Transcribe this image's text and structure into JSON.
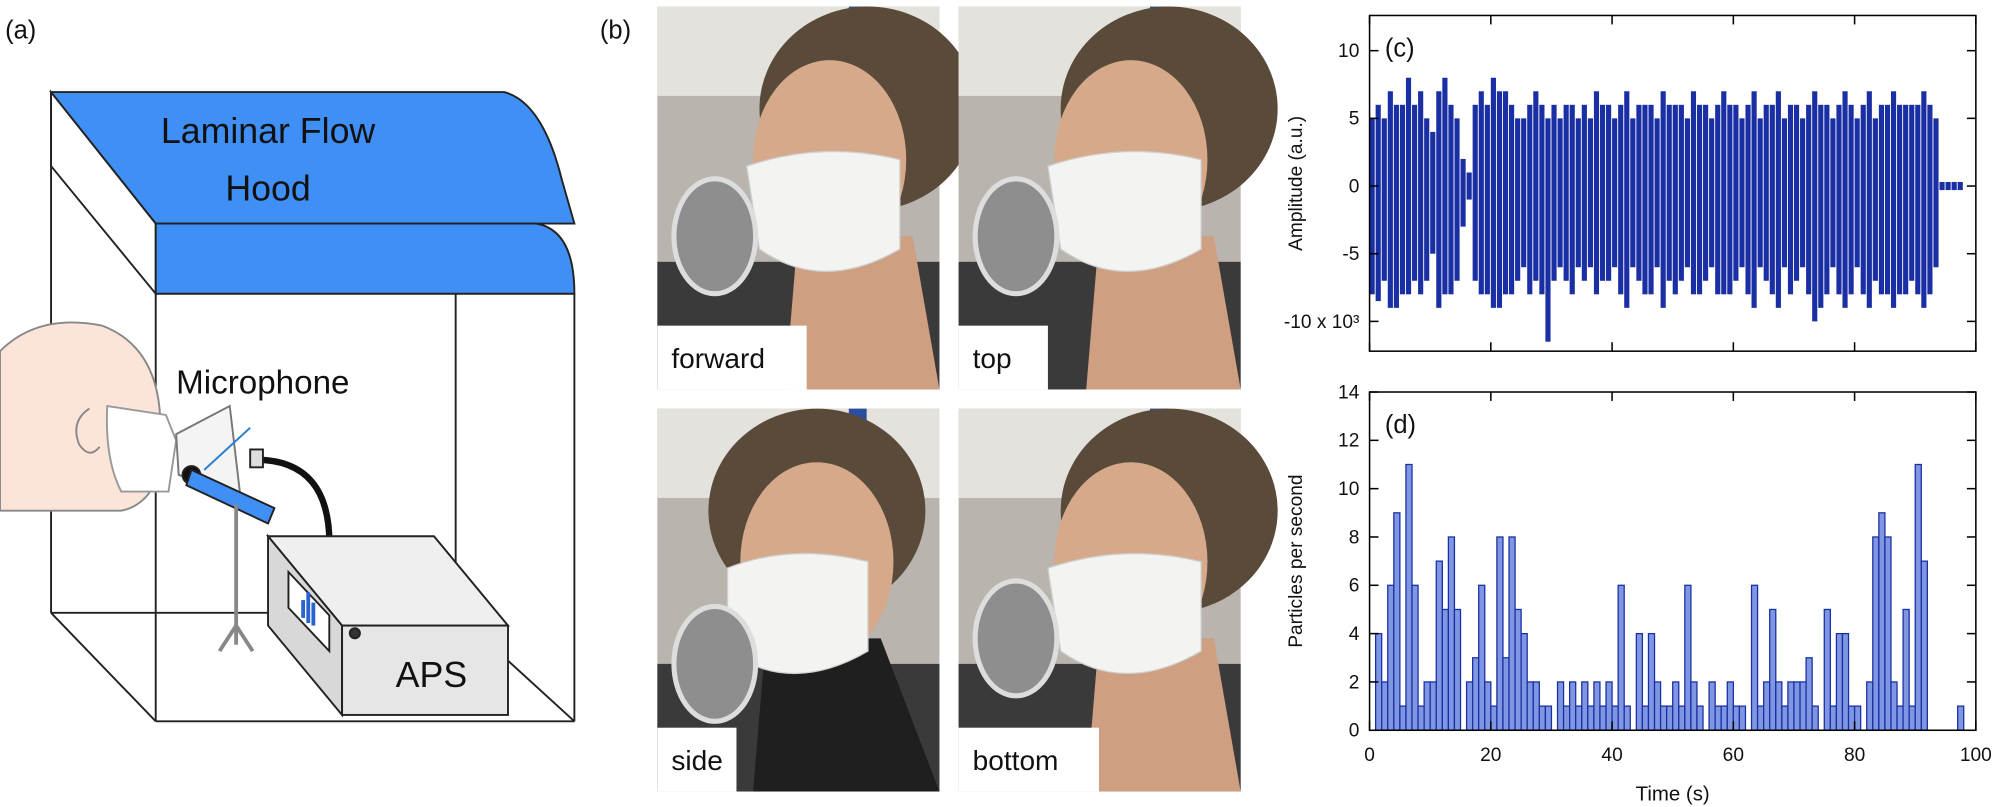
{
  "panels": [
    "(a)",
    "(b)"
  ],
  "diagram": {
    "hood_lines": [
      "Laminar Flow",
      "Hood"
    ],
    "microphone": "Microphone",
    "instrument": "APS"
  },
  "photos": [
    "forward",
    "top",
    "side",
    "bottom"
  ],
  "chart_data": [
    {
      "type": "waveform",
      "panel_label": "(c)",
      "y_label": "Amplitude (a.u.)",
      "color": "#1a2fa3",
      "xlim": [
        0,
        100
      ],
      "ylim": [
        -12.2,
        12.6
      ],
      "yticks": [
        10,
        5,
        0,
        -5,
        {
          "value": -10,
          "label": "-10 x 10³"
        }
      ],
      "x": [
        0,
        1,
        2,
        3,
        4,
        5,
        6,
        7,
        8,
        9,
        10,
        11,
        12,
        13,
        14,
        15,
        16,
        17,
        18,
        19,
        20,
        21,
        22,
        23,
        24,
        25,
        26,
        27,
        28,
        29,
        30,
        31,
        32,
        33,
        34,
        35,
        36,
        37,
        38,
        39,
        40,
        41,
        42,
        43,
        44,
        45,
        46,
        47,
        48,
        49,
        50,
        51,
        52,
        53,
        54,
        55,
        56,
        57,
        58,
        59,
        60,
        61,
        62,
        63,
        64,
        65,
        66,
        67,
        68,
        69,
        70,
        71,
        72,
        73,
        74,
        75,
        76,
        77,
        78,
        79,
        80,
        81,
        82,
        83,
        84,
        85,
        86,
        87,
        88,
        89,
        90,
        91,
        92,
        93,
        94,
        95,
        96,
        97
      ],
      "high": [
        5,
        6,
        5,
        7,
        6,
        6,
        8,
        6,
        7,
        5,
        4,
        7,
        8,
        6,
        5,
        2,
        1,
        6,
        7,
        6,
        8,
        7,
        7,
        6,
        5,
        5,
        6,
        7,
        6,
        5,
        6,
        5,
        6,
        6,
        5,
        6,
        5,
        7,
        6,
        6,
        5,
        6,
        7,
        5,
        6,
        6,
        6,
        5,
        7,
        6,
        6,
        6,
        5,
        7,
        6,
        6,
        5,
        6,
        7,
        6,
        6,
        5,
        6,
        7,
        5,
        6,
        6,
        7,
        5,
        6,
        6,
        5,
        6,
        7,
        6,
        6,
        5,
        6,
        7,
        6,
        5,
        6,
        7,
        5,
        6,
        6,
        7,
        6,
        6,
        6,
        6,
        7,
        6,
        5,
        0.3,
        0.3,
        0.3,
        0.3
      ],
      "low": [
        -8,
        -8.5,
        -7,
        -9,
        -9,
        -8,
        -8,
        -7,
        -8,
        -7,
        -5,
        -9,
        -8,
        -8,
        -7,
        -3,
        -1,
        -7,
        -8,
        -8,
        -9,
        -9,
        -8,
        -8,
        -7,
        -6,
        -8,
        -7,
        -8,
        -11.5,
        -7,
        -6,
        -7,
        -8,
        -6,
        -7,
        -6,
        -8,
        -7,
        -7,
        -6,
        -8,
        -9,
        -6,
        -7,
        -8,
        -8,
        -6,
        -9,
        -7,
        -8,
        -7,
        -6,
        -8,
        -8,
        -7,
        -6,
        -8,
        -8,
        -8,
        -7,
        -6,
        -8,
        -9,
        -6,
        -7,
        -8,
        -9,
        -6,
        -8,
        -7,
        -6,
        -8,
        -10,
        -9,
        -8,
        -6,
        -8,
        -9,
        -8,
        -6,
        -8,
        -9,
        -7,
        -8,
        -8,
        -9,
        -8,
        -8,
        -7,
        -8,
        -9,
        -8,
        -6,
        -0.3,
        -0.3,
        -0.3,
        -0.3
      ]
    },
    {
      "type": "histogram",
      "panel_label": "(d)",
      "x_label": "Time (s)",
      "y_label": "Particles per second",
      "color": "#7f97e3",
      "edge_color": "#1a2fa3",
      "xlim": [
        0,
        100
      ],
      "ylim": [
        0,
        14
      ],
      "xticks": [
        0,
        20,
        40,
        60,
        80,
        100
      ],
      "yticks": [
        0,
        2,
        4,
        6,
        8,
        10,
        12,
        14
      ],
      "bins": [
        0,
        1,
        2,
        3,
        4,
        5,
        6,
        7,
        8,
        9,
        10,
        11,
        12,
        13,
        14,
        15,
        16,
        17,
        18,
        19,
        20,
        21,
        22,
        23,
        24,
        25,
        26,
        27,
        28,
        29,
        30,
        31,
        32,
        33,
        34,
        35,
        36,
        37,
        38,
        39,
        40,
        41,
        42,
        43,
        44,
        45,
        46,
        47,
        48,
        49,
        50,
        51,
        52,
        53,
        54,
        55,
        56,
        57,
        58,
        59,
        60,
        61,
        62,
        63,
        64,
        65,
        66,
        67,
        68,
        69,
        70,
        71,
        72,
        73,
        74,
        75,
        76,
        77,
        78,
        79,
        80,
        81,
        82,
        83,
        84,
        85,
        86,
        87,
        88,
        89,
        90,
        91,
        92,
        93,
        94,
        95,
        96,
        97,
        98
      ],
      "values": [
        0,
        4,
        2,
        6,
        9,
        1,
        11,
        6,
        1,
        2,
        2,
        7,
        5,
        8,
        5,
        0,
        2,
        3,
        6,
        2,
        1,
        8,
        3,
        8,
        5,
        4,
        2,
        2,
        1,
        1,
        0,
        2,
        1,
        2,
        1,
        2,
        1,
        2,
        1,
        2,
        1,
        6,
        1,
        0,
        4,
        1,
        4,
        2,
        1,
        1,
        2,
        1,
        6,
        2,
        1,
        0,
        2,
        1,
        1,
        2,
        1,
        1,
        0,
        6,
        1,
        2,
        5,
        2,
        1,
        2,
        2,
        2,
        3,
        1,
        0,
        5,
        1,
        4,
        4,
        1,
        1,
        0,
        2,
        8,
        9,
        8,
        2,
        1,
        5,
        1,
        11,
        7,
        0,
        0,
        0,
        0,
        0,
        1
      ]
    }
  ]
}
